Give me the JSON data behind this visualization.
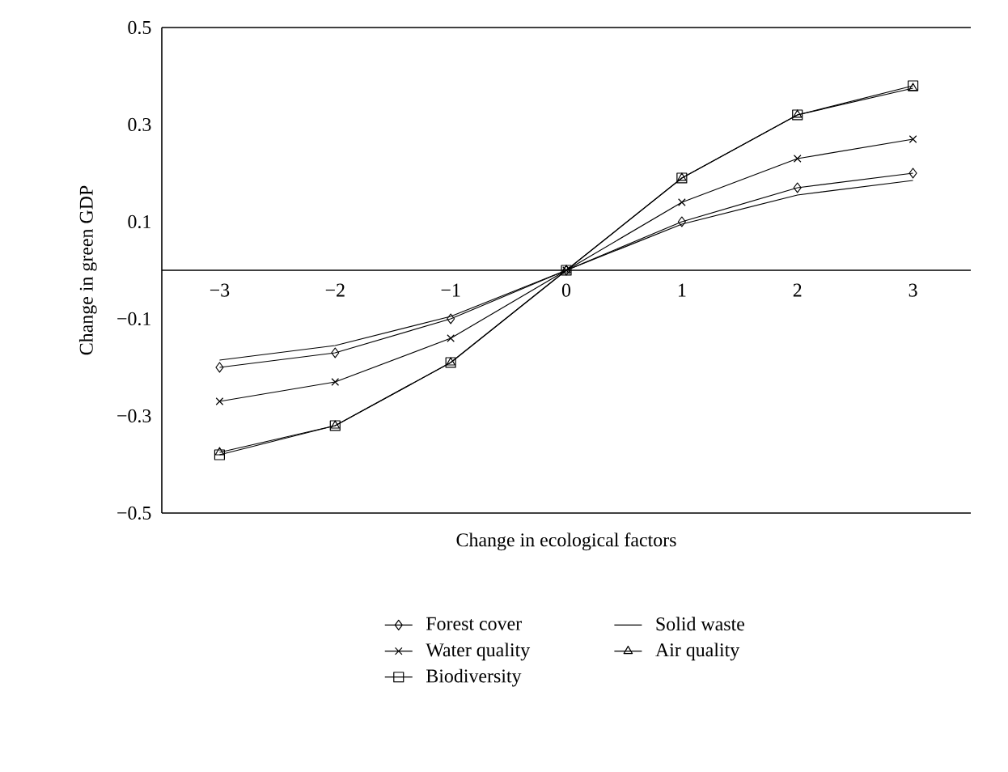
{
  "chart_data": {
    "type": "line",
    "xlabel": "Change in ecological factors",
    "ylabel": "Change in green GDP",
    "x": [
      -3,
      -2,
      -1,
      0,
      1,
      2,
      3
    ],
    "xlim": [
      -3.5,
      3.5
    ],
    "xticks": [
      {
        "value": -3,
        "label": "−3"
      },
      {
        "value": -2,
        "label": "−2"
      },
      {
        "value": -1,
        "label": "−1"
      },
      0,
      1,
      2,
      3
    ],
    "ylim": [
      -0.5,
      0.5
    ],
    "yticks": [
      {
        "value": -0.5,
        "label": "−0.5"
      },
      {
        "value": -0.3,
        "label": "−0.3"
      },
      {
        "value": -0.1,
        "label": "−0.1"
      },
      0.1,
      0.3,
      0.5
    ],
    "legend": "bottom",
    "grid": false,
    "line_style": "solid",
    "series": [
      {
        "name": "Forest cover",
        "color": "#000000",
        "marker": "diamond",
        "values": [
          -0.2,
          -0.17,
          -0.1,
          0,
          0.1,
          0.17,
          0.2
        ]
      },
      {
        "name": "Solid waste",
        "color": "#000000",
        "marker": "none",
        "values": [
          -0.185,
          -0.155,
          -0.095,
          0,
          0.095,
          0.155,
          0.185
        ]
      },
      {
        "name": "Water quality",
        "color": "#000000",
        "marker": "cross",
        "values": [
          -0.27,
          -0.23,
          -0.14,
          0,
          0.14,
          0.23,
          0.27
        ]
      },
      {
        "name": "Air quality",
        "color": "#000000",
        "marker": "triangle",
        "values": [
          -0.375,
          -0.32,
          -0.19,
          0,
          0.19,
          0.32,
          0.375
        ]
      },
      {
        "name": "Biodiversity",
        "color": "#000000",
        "marker": "square",
        "values": [
          -0.38,
          -0.32,
          -0.19,
          0,
          0.19,
          0.32,
          0.38
        ]
      }
    ]
  }
}
